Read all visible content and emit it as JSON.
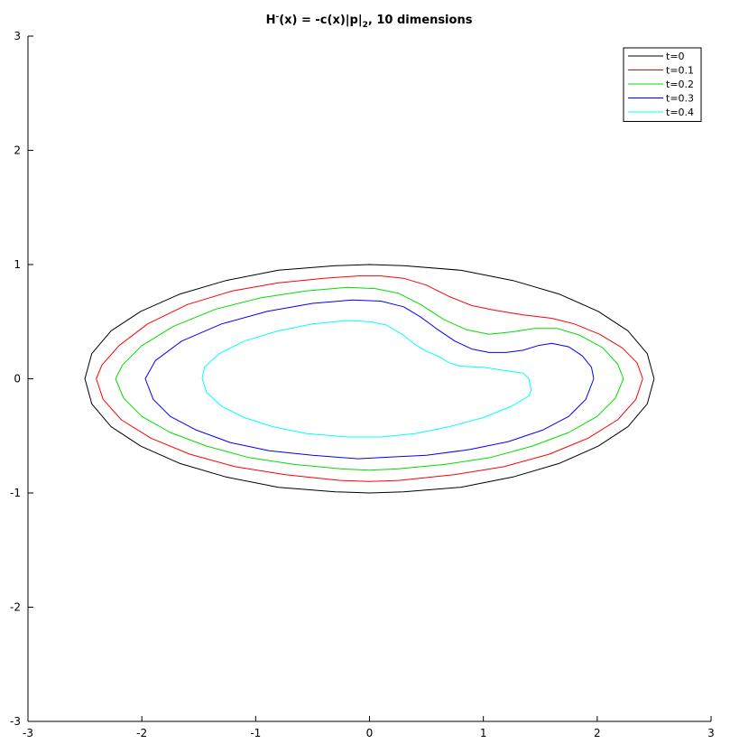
{
  "chart_data": {
    "type": "line",
    "title": {
      "main": "H",
      "sup": "-",
      "mid": "(x) = -c(x)|p|",
      "sub": "2",
      "tail": ", 10 dimensions"
    },
    "xlabel": "",
    "ylabel": "",
    "xlim": [
      -3,
      3
    ],
    "ylim": [
      -3,
      3
    ],
    "xticks": [
      -3,
      -2,
      -1,
      0,
      1,
      2,
      3
    ],
    "yticks": [
      -3,
      -2,
      -1,
      0,
      1,
      2,
      3
    ],
    "grid": false,
    "legend_position": "top-right",
    "series": [
      {
        "name": "t=0",
        "color": "#000000",
        "points": [
          [
            2.5,
            0
          ],
          [
            2.44,
            0.22
          ],
          [
            2.27,
            0.42
          ],
          [
            2.01,
            0.59
          ],
          [
            1.67,
            0.74
          ],
          [
            1.26,
            0.86
          ],
          [
            0.8,
            0.95
          ],
          [
            0.3,
            0.99
          ],
          [
            0,
            1
          ],
          [
            -0.3,
            0.99
          ],
          [
            -0.8,
            0.95
          ],
          [
            -1.26,
            0.86
          ],
          [
            -1.67,
            0.74
          ],
          [
            -2.01,
            0.59
          ],
          [
            -2.27,
            0.42
          ],
          [
            -2.44,
            0.22
          ],
          [
            -2.5,
            0
          ],
          [
            -2.44,
            -0.22
          ],
          [
            -2.27,
            -0.42
          ],
          [
            -2.01,
            -0.59
          ],
          [
            -1.67,
            -0.74
          ],
          [
            -1.26,
            -0.86
          ],
          [
            -0.8,
            -0.95
          ],
          [
            -0.3,
            -0.99
          ],
          [
            0,
            -1
          ],
          [
            0.3,
            -0.99
          ],
          [
            0.8,
            -0.95
          ],
          [
            1.26,
            -0.86
          ],
          [
            1.67,
            -0.74
          ],
          [
            2.01,
            -0.59
          ],
          [
            2.27,
            -0.42
          ],
          [
            2.44,
            -0.22
          ],
          [
            2.5,
            0
          ]
        ]
      },
      {
        "name": "t=0.1",
        "color": "#ff0000",
        "points": [
          [
            2.4,
            0
          ],
          [
            2.35,
            0.14
          ],
          [
            2.22,
            0.27
          ],
          [
            2.02,
            0.39
          ],
          [
            1.8,
            0.48
          ],
          [
            1.6,
            0.53
          ],
          [
            1.35,
            0.56
          ],
          [
            1.1,
            0.6
          ],
          [
            0.9,
            0.64
          ],
          [
            0.7,
            0.72
          ],
          [
            0.5,
            0.82
          ],
          [
            0.3,
            0.88
          ],
          [
            0.1,
            0.9
          ],
          [
            -0.1,
            0.9
          ],
          [
            -0.4,
            0.88
          ],
          [
            -0.8,
            0.84
          ],
          [
            -1.2,
            0.77
          ],
          [
            -1.6,
            0.65
          ],
          [
            -1.95,
            0.48
          ],
          [
            -2.2,
            0.29
          ],
          [
            -2.35,
            0.12
          ],
          [
            -2.4,
            0
          ],
          [
            -2.34,
            -0.18
          ],
          [
            -2.18,
            -0.36
          ],
          [
            -1.92,
            -0.52
          ],
          [
            -1.58,
            -0.66
          ],
          [
            -1.18,
            -0.77
          ],
          [
            -0.74,
            -0.84
          ],
          [
            -0.26,
            -0.89
          ],
          [
            0,
            -0.9
          ],
          [
            0.26,
            -0.89
          ],
          [
            0.74,
            -0.84
          ],
          [
            1.18,
            -0.77
          ],
          [
            1.58,
            -0.66
          ],
          [
            1.92,
            -0.52
          ],
          [
            2.18,
            -0.36
          ],
          [
            2.34,
            -0.18
          ],
          [
            2.4,
            0
          ]
        ]
      },
      {
        "name": "t=0.2",
        "color": "#00dd00",
        "points": [
          [
            2.23,
            0
          ],
          [
            2.18,
            0.13
          ],
          [
            2.05,
            0.27
          ],
          [
            1.85,
            0.38
          ],
          [
            1.65,
            0.44
          ],
          [
            1.45,
            0.44
          ],
          [
            1.25,
            0.41
          ],
          [
            1.05,
            0.39
          ],
          [
            0.85,
            0.43
          ],
          [
            0.65,
            0.52
          ],
          [
            0.45,
            0.65
          ],
          [
            0.25,
            0.75
          ],
          [
            0.05,
            0.79
          ],
          [
            -0.2,
            0.8
          ],
          [
            -0.55,
            0.77
          ],
          [
            -0.95,
            0.71
          ],
          [
            -1.35,
            0.61
          ],
          [
            -1.72,
            0.46
          ],
          [
            -2.0,
            0.29
          ],
          [
            -2.17,
            0.12
          ],
          [
            -2.23,
            0
          ],
          [
            -2.16,
            -0.17
          ],
          [
            -2.0,
            -0.33
          ],
          [
            -1.75,
            -0.47
          ],
          [
            -1.43,
            -0.59
          ],
          [
            -1.06,
            -0.69
          ],
          [
            -0.66,
            -0.75
          ],
          [
            -0.24,
            -0.79
          ],
          [
            0,
            -0.8
          ],
          [
            0.24,
            -0.79
          ],
          [
            0.66,
            -0.75
          ],
          [
            1.06,
            -0.69
          ],
          [
            1.43,
            -0.59
          ],
          [
            1.75,
            -0.47
          ],
          [
            2.0,
            -0.33
          ],
          [
            2.16,
            -0.17
          ],
          [
            2.23,
            0
          ]
        ]
      },
      {
        "name": "t=0.3",
        "color": "#0000ff",
        "points": [
          [
            1.97,
            0
          ],
          [
            1.95,
            0.1
          ],
          [
            1.87,
            0.2
          ],
          [
            1.75,
            0.28
          ],
          [
            1.6,
            0.31
          ],
          [
            1.48,
            0.29
          ],
          [
            1.35,
            0.25
          ],
          [
            1.2,
            0.23
          ],
          [
            1.05,
            0.23
          ],
          [
            0.9,
            0.26
          ],
          [
            0.75,
            0.33
          ],
          [
            0.6,
            0.43
          ],
          [
            0.45,
            0.54
          ],
          [
            0.3,
            0.63
          ],
          [
            0.1,
            0.68
          ],
          [
            -0.15,
            0.69
          ],
          [
            -0.5,
            0.66
          ],
          [
            -0.9,
            0.59
          ],
          [
            -1.3,
            0.48
          ],
          [
            -1.65,
            0.33
          ],
          [
            -1.88,
            0.16
          ],
          [
            -1.97,
            0
          ],
          [
            -1.9,
            -0.18
          ],
          [
            -1.75,
            -0.33
          ],
          [
            -1.52,
            -0.45
          ],
          [
            -1.22,
            -0.56
          ],
          [
            -0.88,
            -0.63
          ],
          [
            -0.5,
            -0.67
          ],
          [
            -0.1,
            -0.7
          ],
          [
            0.1,
            -0.69
          ],
          [
            0.5,
            -0.67
          ],
          [
            0.88,
            -0.62
          ],
          [
            1.22,
            -0.55
          ],
          [
            1.52,
            -0.45
          ],
          [
            1.75,
            -0.33
          ],
          [
            1.9,
            -0.18
          ],
          [
            1.97,
            0
          ]
        ]
      },
      {
        "name": "t=0.4",
        "color": "#00ffff",
        "points": [
          [
            1.42,
            -0.1
          ],
          [
            1.4,
            0
          ],
          [
            1.35,
            0.05
          ],
          [
            1.2,
            0.07
          ],
          [
            1.0,
            0.1
          ],
          [
            0.8,
            0.11
          ],
          [
            0.7,
            0.14
          ],
          [
            0.6,
            0.2
          ],
          [
            0.5,
            0.24
          ],
          [
            0.4,
            0.3
          ],
          [
            0.3,
            0.38
          ],
          [
            0.15,
            0.47
          ],
          [
            0,
            0.5
          ],
          [
            -0.2,
            0.51
          ],
          [
            -0.5,
            0.48
          ],
          [
            -0.8,
            0.42
          ],
          [
            -1.1,
            0.33
          ],
          [
            -1.32,
            0.22
          ],
          [
            -1.45,
            0.1
          ],
          [
            -1.47,
            0
          ],
          [
            -1.43,
            -0.12
          ],
          [
            -1.3,
            -0.24
          ],
          [
            -1.1,
            -0.34
          ],
          [
            -0.85,
            -0.42
          ],
          [
            -0.55,
            -0.48
          ],
          [
            -0.2,
            -0.51
          ],
          [
            0.1,
            -0.51
          ],
          [
            0.4,
            -0.48
          ],
          [
            0.7,
            -0.42
          ],
          [
            1.0,
            -0.34
          ],
          [
            1.25,
            -0.24
          ],
          [
            1.4,
            -0.15
          ],
          [
            1.42,
            -0.1
          ]
        ]
      }
    ]
  }
}
